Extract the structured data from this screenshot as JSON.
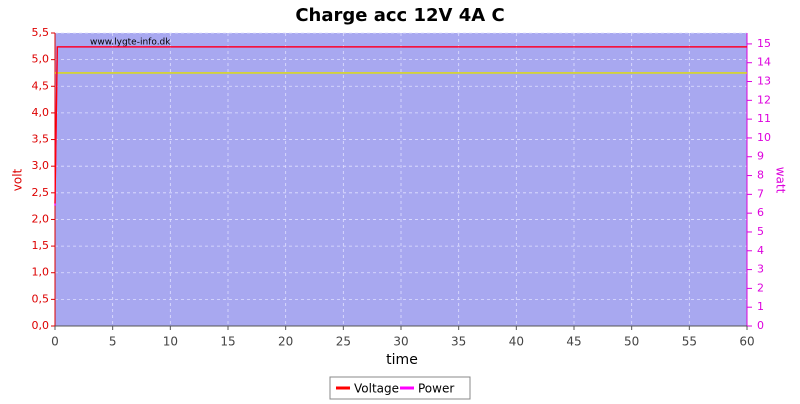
{
  "chart_data": {
    "type": "line",
    "title": "Charge acc 12V 4A C",
    "watermark": "www.lygte-info.dk",
    "xlabel": "time",
    "ylabel": "volt",
    "y2label": "watt",
    "x": [
      0,
      0.2,
      60
    ],
    "series": [
      {
        "name": "Voltage",
        "color": "#ff0000",
        "values": [
          2.3,
          5.24,
          5.24
        ]
      },
      {
        "name": "Power",
        "color": "#ff00ff",
        "values": [
          6.4,
          14.84,
          14.84
        ],
        "axis": "y2"
      },
      {
        "color": "#e0e000",
        "values": [
          4.75,
          4.75,
          4.75
        ]
      }
    ],
    "xlim": [
      0,
      60
    ],
    "xticks": [
      0,
      5,
      10,
      15,
      20,
      25,
      30,
      35,
      40,
      45,
      50,
      55,
      60
    ],
    "ylim": [
      0,
      5.5
    ],
    "yticks": [
      {
        "value": 0,
        "label": "0,0"
      },
      {
        "value": 0.5,
        "label": "0,5"
      },
      {
        "value": 1,
        "label": "1,0"
      },
      {
        "value": 1.5,
        "label": "1,5"
      },
      {
        "value": 2,
        "label": "2,0"
      },
      {
        "value": 2.5,
        "label": "2,5"
      },
      {
        "value": 3,
        "label": "3,0"
      },
      {
        "value": 3.5,
        "label": "3,5"
      },
      {
        "value": 4,
        "label": "4,0"
      },
      {
        "value": 4.5,
        "label": "4,5"
      },
      {
        "value": 5,
        "label": "5,0"
      },
      {
        "value": 5.5,
        "label": "5,5"
      }
    ],
    "y2lim": [
      0,
      15.58
    ],
    "y2ticks": [
      0,
      1,
      2,
      3,
      4,
      5,
      6,
      7,
      8,
      9,
      10,
      11,
      12,
      13,
      14,
      15
    ],
    "grid": true,
    "legend": "bottom"
  }
}
